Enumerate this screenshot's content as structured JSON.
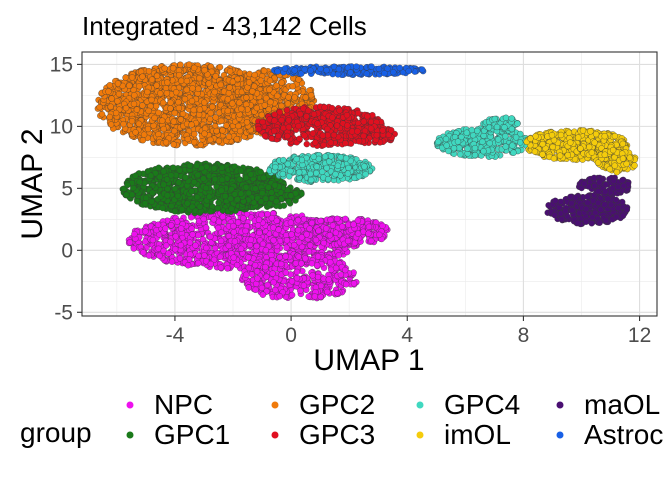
{
  "chart_data": {
    "type": "scatter",
    "title": "Integrated - 43,142 Cells",
    "xlabel": "UMAP 1",
    "ylabel": "UMAP 2",
    "xlim": [
      -7.2,
      12.6
    ],
    "ylim": [
      -5.3,
      16.0
    ],
    "xticks": [
      -4,
      0,
      4,
      8,
      12
    ],
    "yticks": [
      -5,
      0,
      5,
      10,
      15
    ],
    "grid": true,
    "legend_title": "group",
    "legend_position": "bottom",
    "point_outline_color": "#3a3a3a",
    "series": [
      {
        "name": "NPC",
        "color": "#ee11ee",
        "regions": [
          {
            "cx": -1.6,
            "cy": 0.8,
            "rx": 4.0,
            "ry": 2.3,
            "n": 1100
          },
          {
            "cx": 0.3,
            "cy": -2.2,
            "rx": 2.0,
            "ry": 1.8,
            "n": 350
          },
          {
            "cx": 1.8,
            "cy": 1.5,
            "rx": 1.6,
            "ry": 1.1,
            "n": 250
          }
        ]
      },
      {
        "name": "GPC1",
        "color": "#1a7a1a",
        "regions": [
          {
            "cx": -3.0,
            "cy": 5.0,
            "rx": 2.8,
            "ry": 2.0,
            "n": 1000
          },
          {
            "cx": -0.8,
            "cy": 4.4,
            "rx": 1.2,
            "ry": 0.9,
            "n": 150
          }
        ]
      },
      {
        "name": "GPC2",
        "color": "#f07a0a",
        "regions": [
          {
            "cx": -3.5,
            "cy": 11.7,
            "rx": 3.2,
            "ry": 3.3,
            "n": 1500
          },
          {
            "cx": -0.8,
            "cy": 12.0,
            "rx": 1.6,
            "ry": 2.6,
            "n": 400
          }
        ]
      },
      {
        "name": "GPC3",
        "color": "#e01020",
        "regions": [
          {
            "cx": 1.0,
            "cy": 10.0,
            "rx": 2.2,
            "ry": 1.6,
            "n": 500
          },
          {
            "cx": 2.8,
            "cy": 9.3,
            "rx": 0.8,
            "ry": 0.7,
            "n": 120
          }
        ]
      },
      {
        "name": "GPC4",
        "color": "#40d8c0",
        "regions": [
          {
            "cx": 1.0,
            "cy": 6.6,
            "rx": 1.8,
            "ry": 1.1,
            "n": 350
          },
          {
            "cx": 6.6,
            "cy": 8.7,
            "rx": 1.6,
            "ry": 1.2,
            "n": 300
          },
          {
            "cx": 7.2,
            "cy": 10.2,
            "rx": 0.6,
            "ry": 0.6,
            "n": 80
          }
        ]
      },
      {
        "name": "imOL",
        "color": "#f5cc0c",
        "regions": [
          {
            "cx": 9.8,
            "cy": 8.5,
            "rx": 1.8,
            "ry": 1.2,
            "n": 450
          },
          {
            "cx": 11.2,
            "cy": 7.2,
            "rx": 0.7,
            "ry": 0.9,
            "n": 120
          }
        ]
      },
      {
        "name": "maOL",
        "color": "#4a0f72",
        "regions": [
          {
            "cx": 10.2,
            "cy": 3.3,
            "rx": 1.4,
            "ry": 1.2,
            "n": 280
          },
          {
            "cx": 10.8,
            "cy": 5.2,
            "rx": 0.9,
            "ry": 0.7,
            "n": 90
          }
        ]
      },
      {
        "name": "Astroc",
        "color": "#1860e6",
        "regions": [
          {
            "cx": 2.0,
            "cy": 14.5,
            "rx": 2.6,
            "ry": 0.35,
            "n": 220
          }
        ]
      }
    ]
  }
}
